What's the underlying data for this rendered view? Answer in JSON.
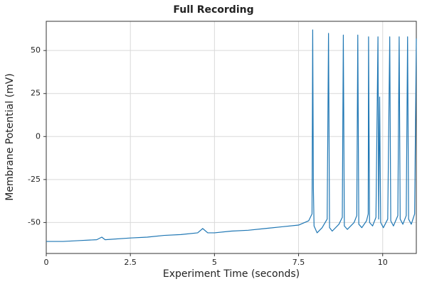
{
  "chart_data": {
    "type": "line",
    "title": "Full Recording",
    "x_label": "Experiment Time (seconds)",
    "y_label": "Membrane Potential (mV)",
    "x": [
      0,
      0.5,
      1,
      1.5,
      1.65,
      1.75,
      2.5,
      3,
      3.5,
      4,
      4.5,
      4.65,
      4.8,
      5,
      5.5,
      6,
      6.5,
      7,
      7.5,
      7.8,
      7.9,
      7.92,
      7.94,
      7.96,
      8.05,
      8.2,
      8.35,
      8.39,
      8.42,
      8.5,
      8.7,
      8.8,
      8.83,
      8.86,
      8.95,
      9.15,
      9.23,
      9.26,
      9.29,
      9.38,
      9.52,
      9.57,
      9.58,
      9.61,
      9.7,
      9.8,
      9.86,
      9.88,
      9.91,
      9.94,
      10.02,
      10.15,
      10.21,
      10.24,
      10.32,
      10.45,
      10.49,
      10.52,
      10.6,
      10.7,
      10.74,
      10.77,
      10.85,
      10.95,
      11
    ],
    "series": [
      {
        "name": "Membrane Potential",
        "color": "#1f77b4",
        "values": [
          -61,
          -61,
          -60.5,
          -60,
          -58.5,
          -60,
          -59,
          -58.5,
          -57.5,
          -57,
          -56,
          -53.5,
          -56,
          -56,
          -55,
          -54.5,
          -53.5,
          -52.5,
          -51.5,
          -49,
          -45,
          62,
          -30,
          -52,
          -56,
          -53,
          -48,
          60,
          -53,
          -55,
          -51,
          -47,
          59,
          -52,
          -54,
          -50,
          -46,
          59,
          -51,
          -53,
          -49,
          -45,
          58,
          -50,
          -52,
          -47,
          58,
          -48,
          23,
          -50,
          -53,
          -48,
          58,
          -49,
          -52,
          -46,
          58,
          -48,
          -51,
          -46,
          58,
          -48,
          -51,
          -45,
          57
        ]
      }
    ],
    "xlim": [
      0,
      11
    ],
    "ylim": [
      -68,
      67
    ],
    "xticks": [
      0,
      2.5,
      5,
      7.5,
      10
    ],
    "yticks": [
      -50,
      -25,
      0,
      25,
      50
    ],
    "grid": true
  }
}
